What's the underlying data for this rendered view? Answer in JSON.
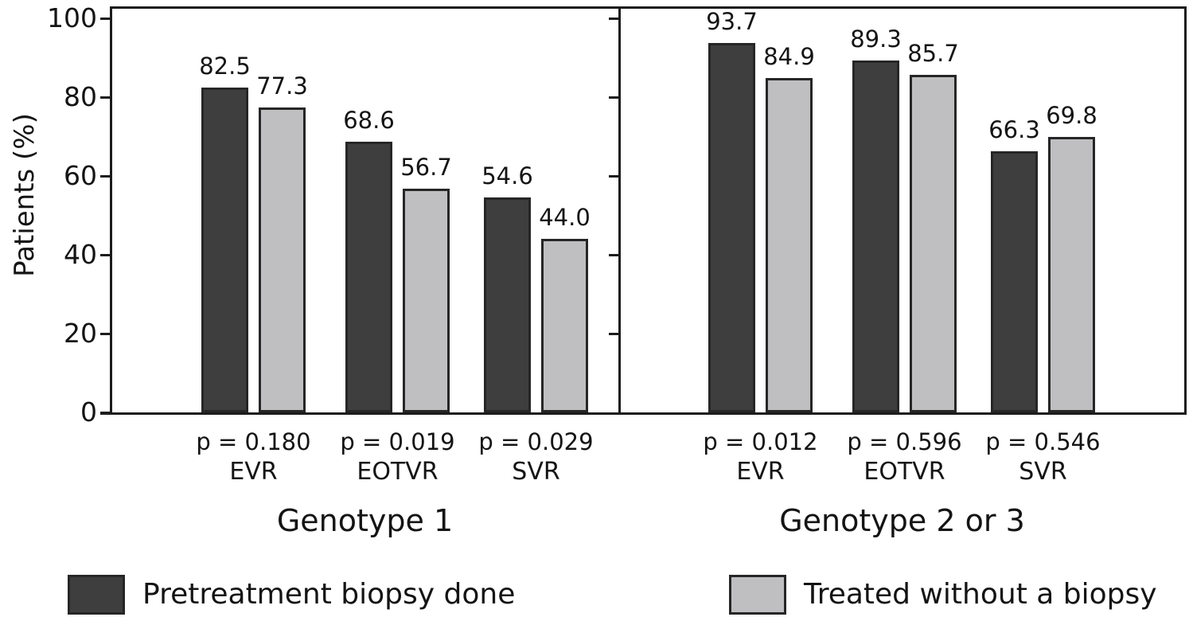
{
  "chart_data": {
    "type": "bar",
    "ylabel": "Patients (%)",
    "ylim": [
      0,
      100
    ],
    "yticks": [
      0,
      20,
      40,
      60,
      80,
      100
    ],
    "grid": false,
    "series": [
      {
        "name": "Pretreatment biopsy done",
        "color": "#3e3e3e"
      },
      {
        "name": "Treated without a biopsy",
        "color": "#bfbfc1"
      }
    ],
    "panels": [
      {
        "label": "Genotype 1",
        "groups": [
          {
            "category": "EVR",
            "p_label": "p = 0.180",
            "values": [
              82.5,
              77.3
            ],
            "value_labels": [
              "82.5",
              "77.3"
            ]
          },
          {
            "category": "EOTVR",
            "p_label": "p = 0.019",
            "values": [
              68.6,
              56.7
            ],
            "value_labels": [
              "68.6",
              "56.7"
            ]
          },
          {
            "category": "SVR",
            "p_label": "p = 0.029",
            "values": [
              54.6,
              44.0
            ],
            "value_labels": [
              "54.6",
              "44.0"
            ]
          }
        ]
      },
      {
        "label": "Genotype 2 or 3",
        "groups": [
          {
            "category": "EVR",
            "p_label": "p = 0.012",
            "values": [
              93.7,
              84.9
            ],
            "value_labels": [
              "93.7",
              "84.9"
            ]
          },
          {
            "category": "EOTVR",
            "p_label": "p = 0.596",
            "values": [
              89.3,
              85.7
            ],
            "value_labels": [
              "89.3",
              "85.7"
            ]
          },
          {
            "category": "SVR",
            "p_label": "p = 0.546",
            "values": [
              66.3,
              69.8
            ],
            "value_labels": [
              "66.3",
              "69.8"
            ]
          }
        ]
      }
    ],
    "legend": {
      "position": "bottom",
      "entries": [
        {
          "label": "Pretreatment biopsy done",
          "color": "#3e3e3e"
        },
        {
          "label": "Treated without a biopsy",
          "color": "#bfbfc1"
        }
      ]
    }
  }
}
